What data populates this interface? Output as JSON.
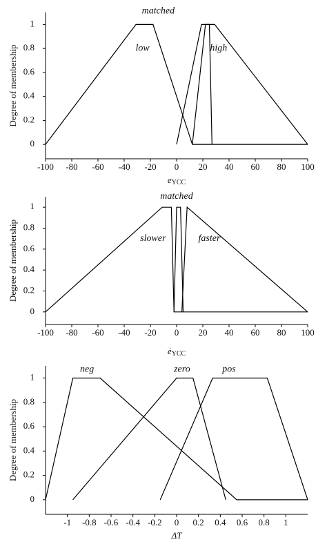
{
  "chart_data": [
    {
      "type": "line",
      "y_label": "Degree of membership",
      "x_label": "e",
      "x_label_sub": "YCC",
      "xlim": [
        -100,
        100
      ],
      "xticks": [
        -100,
        -80,
        -60,
        -40,
        -20,
        0,
        20,
        40,
        60,
        80,
        100
      ],
      "ylim": [
        -0.12,
        1.1
      ],
      "yticks": [
        0,
        0.2,
        0.4,
        0.6,
        0.8,
        1
      ],
      "series": [
        {
          "name": "low",
          "color": "#000000",
          "x": [
            -100,
            -31,
            -18,
            12,
            100
          ],
          "values": [
            0,
            1,
            1,
            0,
            0
          ]
        },
        {
          "name": "matched",
          "color": "#000000",
          "x": [
            0,
            19,
            25,
            27
          ],
          "values": [
            0,
            1,
            1,
            0
          ]
        },
        {
          "name": "high",
          "color": "#000000",
          "x": [
            12,
            22,
            29,
            100
          ],
          "values": [
            0,
            1,
            1,
            0
          ]
        }
      ]
    },
    {
      "type": "line",
      "y_label": "Degree of membership",
      "x_label": "ė",
      "x_label_sub": "YCC",
      "xlim": [
        -100,
        100
      ],
      "xticks": [
        -100,
        -80,
        -60,
        -40,
        -20,
        0,
        20,
        40,
        60,
        80,
        100
      ],
      "ylim": [
        -0.12,
        1.1
      ],
      "yticks": [
        0,
        0.2,
        0.4,
        0.6,
        0.8,
        1
      ],
      "series": [
        {
          "name": "slower",
          "color": "#000000",
          "x": [
            -100,
            -11,
            -4,
            -2,
            100
          ],
          "values": [
            0,
            1,
            1,
            0,
            0
          ]
        },
        {
          "name": "matched",
          "color": "#000000",
          "x": [
            -2,
            0,
            3,
            5
          ],
          "values": [
            0,
            1,
            1,
            0
          ]
        },
        {
          "name": "faster",
          "color": "#000000",
          "x": [
            4,
            8,
            100
          ],
          "values": [
            0,
            1,
            0
          ]
        }
      ]
    },
    {
      "type": "line",
      "y_label": "Degree of membership",
      "x_label": "ΔT",
      "xlim": [
        -1.2,
        1.2
      ],
      "xticks": [
        -1,
        -0.8,
        -0.6,
        -0.4,
        -0.2,
        0,
        0.2,
        0.4,
        0.6,
        0.8,
        1
      ],
      "ylim": [
        -0.12,
        1.1
      ],
      "yticks": [
        0,
        0.2,
        0.4,
        0.6,
        0.8,
        1
      ],
      "series": [
        {
          "name": "neg",
          "color": "#000000",
          "x": [
            -1.2,
            -0.95,
            -0.7,
            0.55,
            1.2
          ],
          "values": [
            0,
            1,
            1,
            0,
            0
          ]
        },
        {
          "name": "zero",
          "color": "#000000",
          "x": [
            -0.95,
            0,
            0.15,
            0.45
          ],
          "values": [
            0,
            1,
            1,
            0
          ]
        },
        {
          "name": "pos",
          "color": "#000000",
          "x": [
            -0.15,
            0.33,
            0.83,
            1.2
          ],
          "values": [
            0,
            1,
            1,
            0
          ]
        }
      ]
    }
  ]
}
